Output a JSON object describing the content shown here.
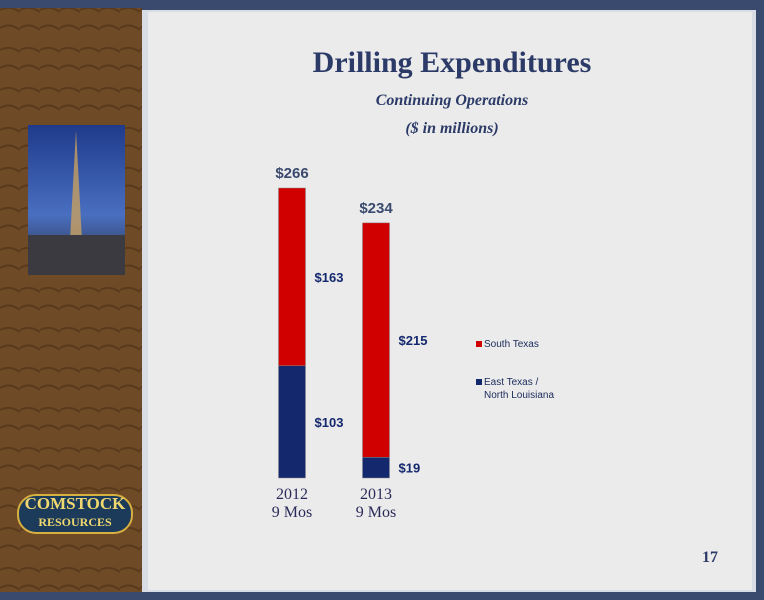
{
  "chart_data": {
    "type": "stacked-bar",
    "title": "Drilling Expenditures",
    "subtitle": [
      "Continuing Operations",
      "($ in millions)"
    ],
    "categories": [
      "2012\n9 Mos",
      "2013\n9 Mos"
    ],
    "series": [
      {
        "name": "East Texas /\nNorth Louisiana",
        "color": "#14286e",
        "values": [
          103,
          19
        ],
        "value_labels": [
          "$103",
          "$19"
        ]
      },
      {
        "name": "South Texas",
        "color": "#d00000",
        "values": [
          163,
          215
        ],
        "value_labels": [
          "$163",
          "$215"
        ]
      }
    ],
    "totals": {
      "values": [
        266,
        234
      ],
      "value_labels": [
        "$266",
        "$234"
      ]
    },
    "legend": "right"
  },
  "page_number": "17",
  "logo": {
    "line1": "COMSTOCK",
    "line2": "RESOURCES"
  }
}
